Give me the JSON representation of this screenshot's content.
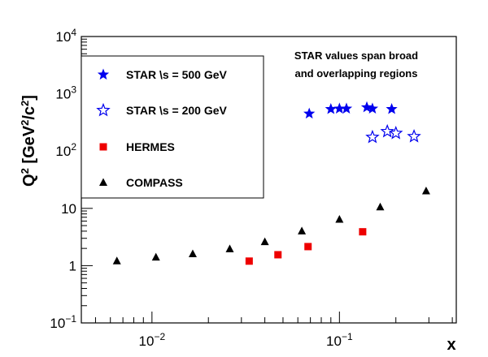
{
  "chart_data": {
    "type": "scatter",
    "title": "",
    "xlabel": "x",
    "ylabel_base": "Q",
    "ylabel_sup": "2",
    "ylabel_units_open": " [GeV",
    "ylabel_units_mid": "/c",
    "ylabel_units_close": "]",
    "xscale": "log",
    "yscale": "log",
    "xlim": [
      0.0042,
      0.42
    ],
    "ylim": [
      0.1,
      10000
    ],
    "x_tick_labels": [
      {
        "value": 0.01,
        "base": "10",
        "exp": "−2"
      },
      {
        "value": 0.1,
        "base": "10",
        "exp": "−1"
      }
    ],
    "y_tick_labels": [
      {
        "value": 0.1,
        "base": "10",
        "exp": "−1"
      },
      {
        "value": 1,
        "text": "1"
      },
      {
        "value": 10,
        "text": "10"
      },
      {
        "value": 100,
        "base": "10",
        "exp": "2"
      },
      {
        "value": 1000,
        "base": "10",
        "exp": "3"
      },
      {
        "value": 10000,
        "base": "10",
        "exp": "4"
      }
    ],
    "annotation": [
      "STAR values span broad",
      "and overlapping regions"
    ],
    "legend_position": "top-left",
    "series": [
      {
        "name": "STAR  \\s = 500 GeV",
        "marker": "star-filled",
        "color": "#0000ee",
        "points": [
          {
            "x": 0.069,
            "y": 450
          },
          {
            "x": 0.09,
            "y": 540
          },
          {
            "x": 0.1,
            "y": 550
          },
          {
            "x": 0.109,
            "y": 550
          },
          {
            "x": 0.14,
            "y": 580
          },
          {
            "x": 0.15,
            "y": 550
          },
          {
            "x": 0.19,
            "y": 540
          }
        ]
      },
      {
        "name": "STAR  \\s = 200 GeV",
        "marker": "star-open",
        "color": "#0000ee",
        "points": [
          {
            "x": 0.15,
            "y": 175
          },
          {
            "x": 0.18,
            "y": 220
          },
          {
            "x": 0.2,
            "y": 205
          },
          {
            "x": 0.25,
            "y": 180
          }
        ]
      },
      {
        "name": "HERMES",
        "marker": "square",
        "color": "#ee0000",
        "points": [
          {
            "x": 0.033,
            "y": 1.2
          },
          {
            "x": 0.047,
            "y": 1.55
          },
          {
            "x": 0.068,
            "y": 2.15
          },
          {
            "x": 0.133,
            "y": 3.9
          }
        ]
      },
      {
        "name": "COMPASS",
        "marker": "triangle",
        "color": "#000000",
        "points": [
          {
            "x": 0.0065,
            "y": 1.2
          },
          {
            "x": 0.0105,
            "y": 1.4
          },
          {
            "x": 0.0165,
            "y": 1.6
          },
          {
            "x": 0.026,
            "y": 1.95
          },
          {
            "x": 0.04,
            "y": 2.6
          },
          {
            "x": 0.063,
            "y": 4.0
          },
          {
            "x": 0.1,
            "y": 6.4
          },
          {
            "x": 0.165,
            "y": 10.5
          },
          {
            "x": 0.29,
            "y": 20
          }
        ]
      }
    ]
  }
}
